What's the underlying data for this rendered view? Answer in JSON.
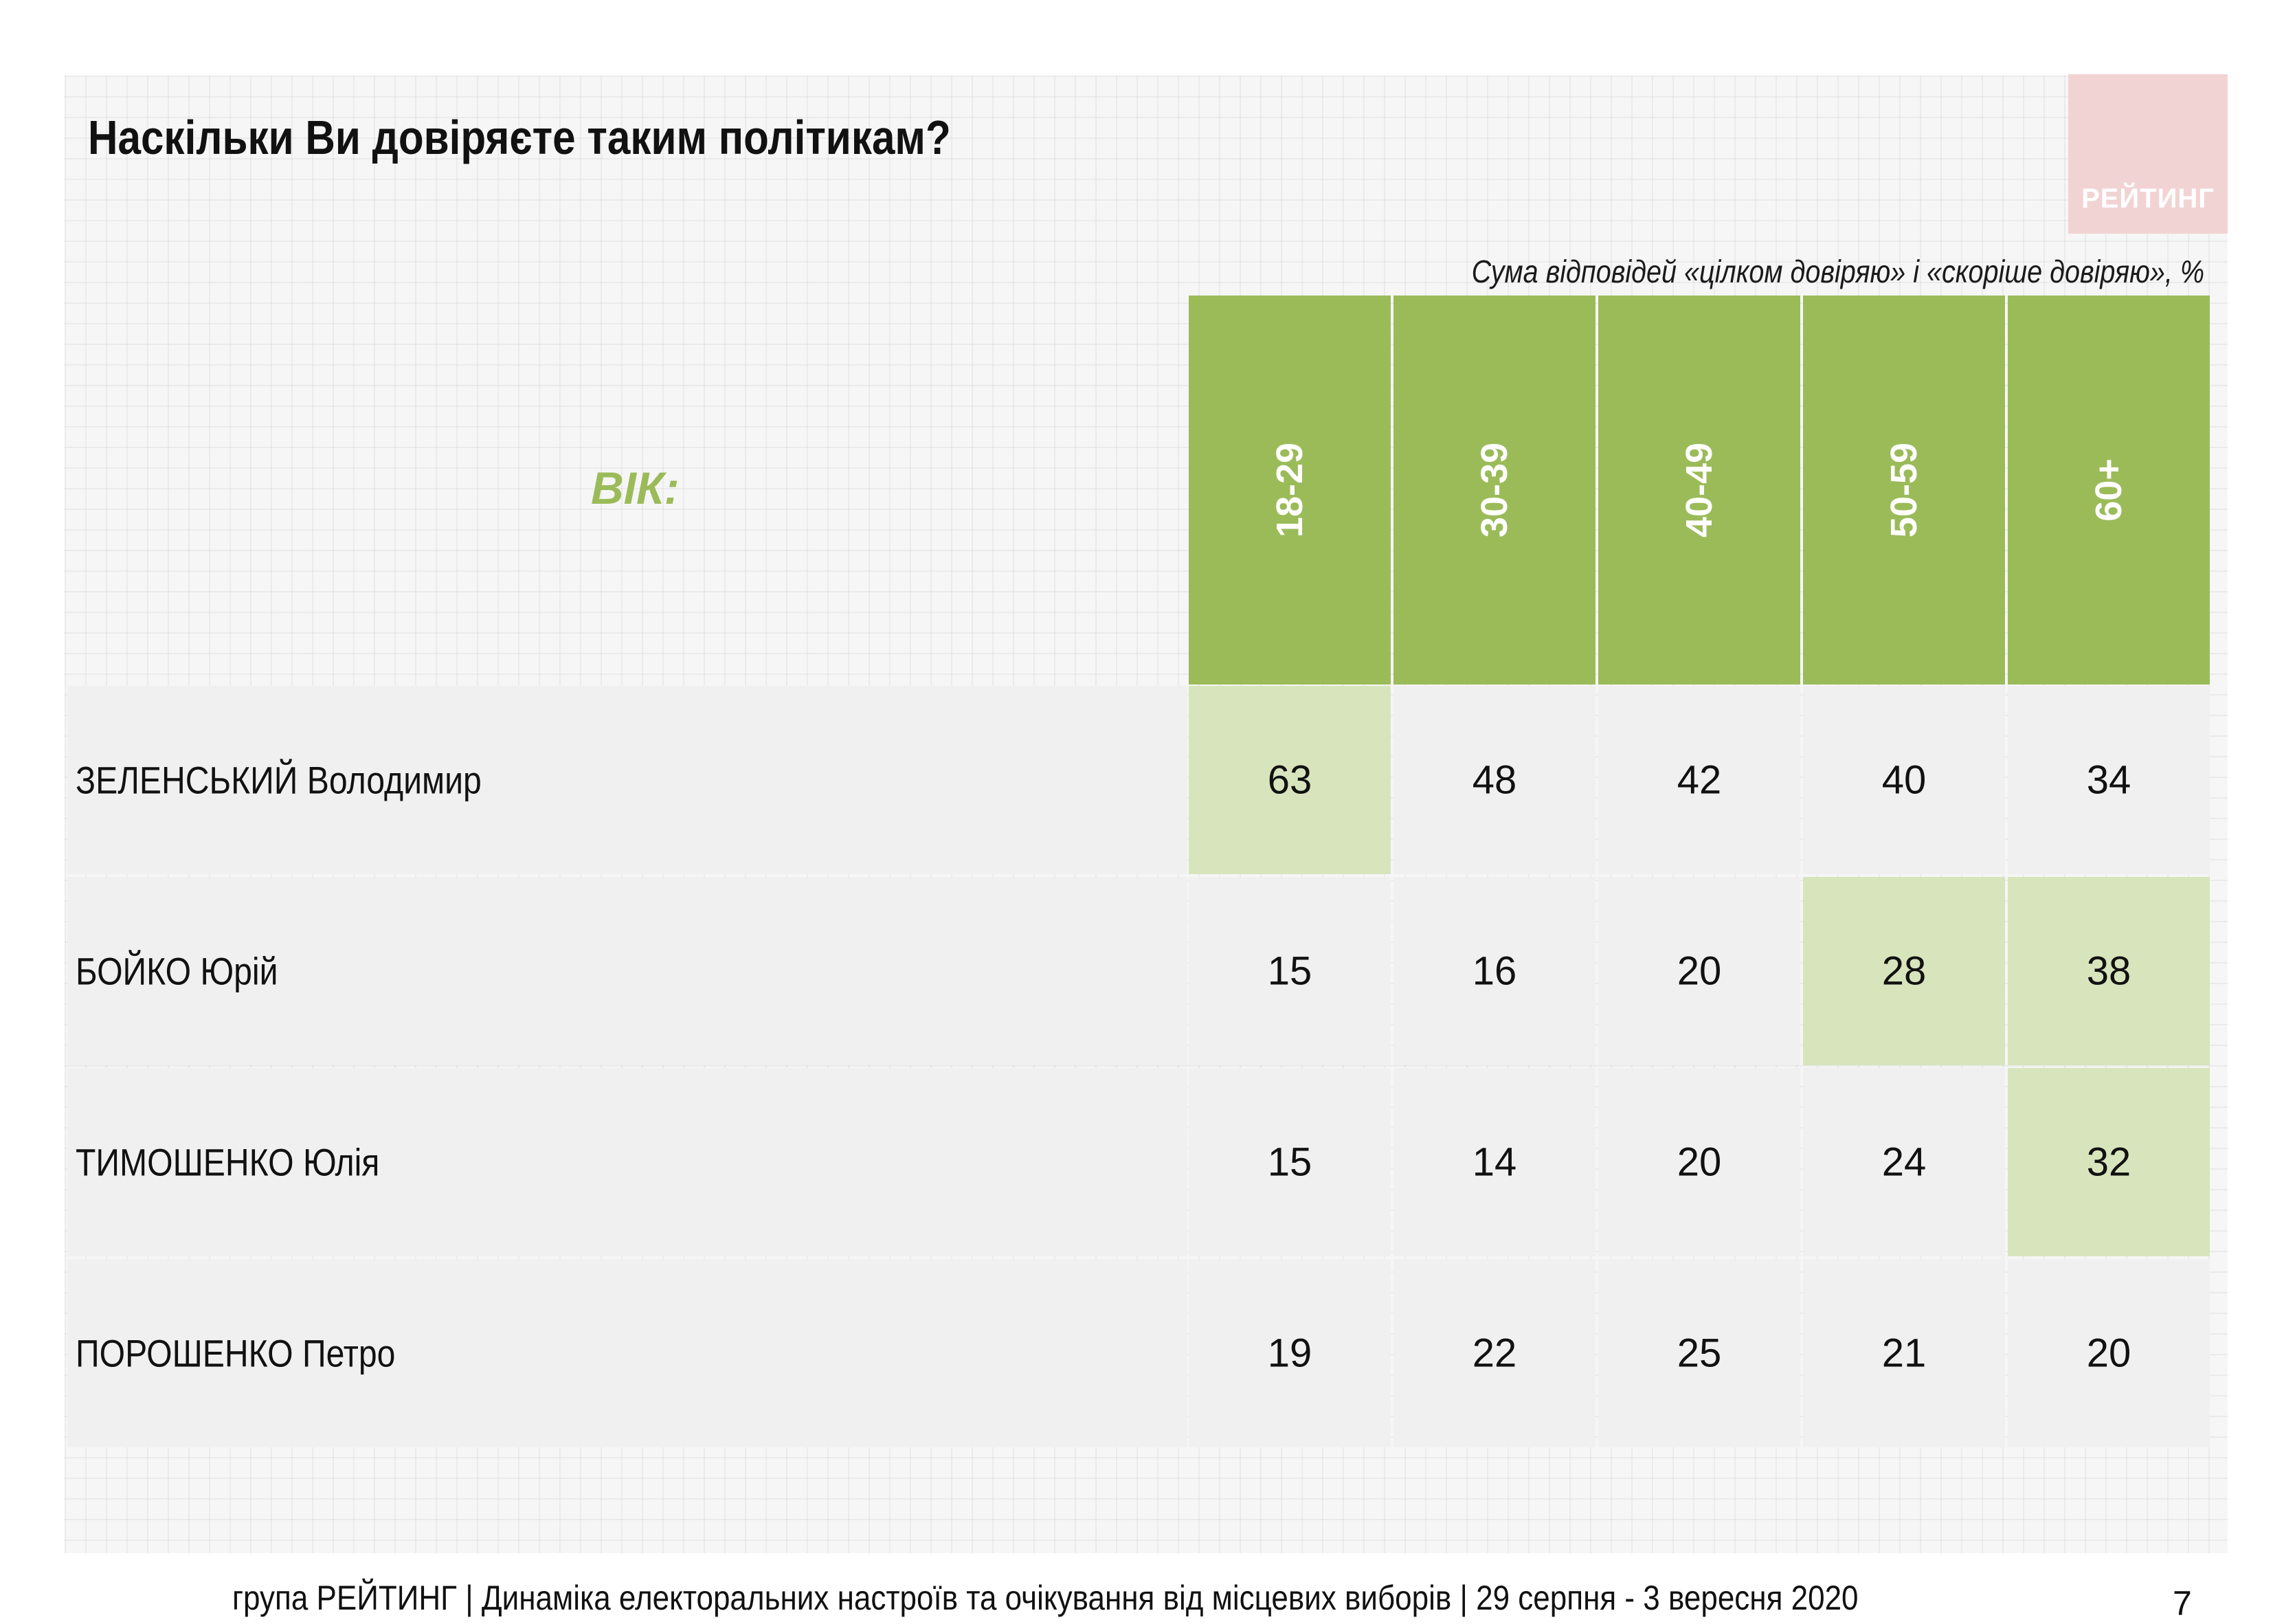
{
  "title": "Наскільки Ви довіряєте таким політикам?",
  "logo_text": "РЕЙТИНГ",
  "colors": {
    "header_green": "#9bbb59",
    "highlight_green": "#d8e4bc",
    "logo_pink": "#f2d3d3"
  },
  "chart_data": {
    "type": "table",
    "subtitle": "Сума відповідей «цілком довіряю» і «скоріше довіряю», %",
    "row_header_label": "ВІК:",
    "columns": [
      "18-29",
      "30-39",
      "40-49",
      "50-59",
      "60+"
    ],
    "rows": [
      {
        "name": "ЗЕЛЕНСЬКИЙ Володимир",
        "values": [
          "63",
          "48",
          "42",
          "40",
          "34"
        ],
        "highlighted": [
          0
        ]
      },
      {
        "name": "БОЙКО Юрій",
        "values": [
          "15",
          "16",
          "20",
          "28",
          "38"
        ],
        "highlighted": [
          3,
          4
        ]
      },
      {
        "name": "ТИМОШЕНКО Юлія",
        "values": [
          "15",
          "14",
          "20",
          "24",
          "32"
        ],
        "highlighted": [
          4
        ]
      },
      {
        "name": "ПОРОШЕНКО Петро",
        "values": [
          "19",
          "22",
          "25",
          "21",
          "20"
        ],
        "highlighted": []
      }
    ]
  },
  "footer": "група РЕЙТИНГ | Динаміка електоральних настроїв та очікування від місцевих виборів | 29 серпня - 3 вересня 2020",
  "page_number": "7"
}
